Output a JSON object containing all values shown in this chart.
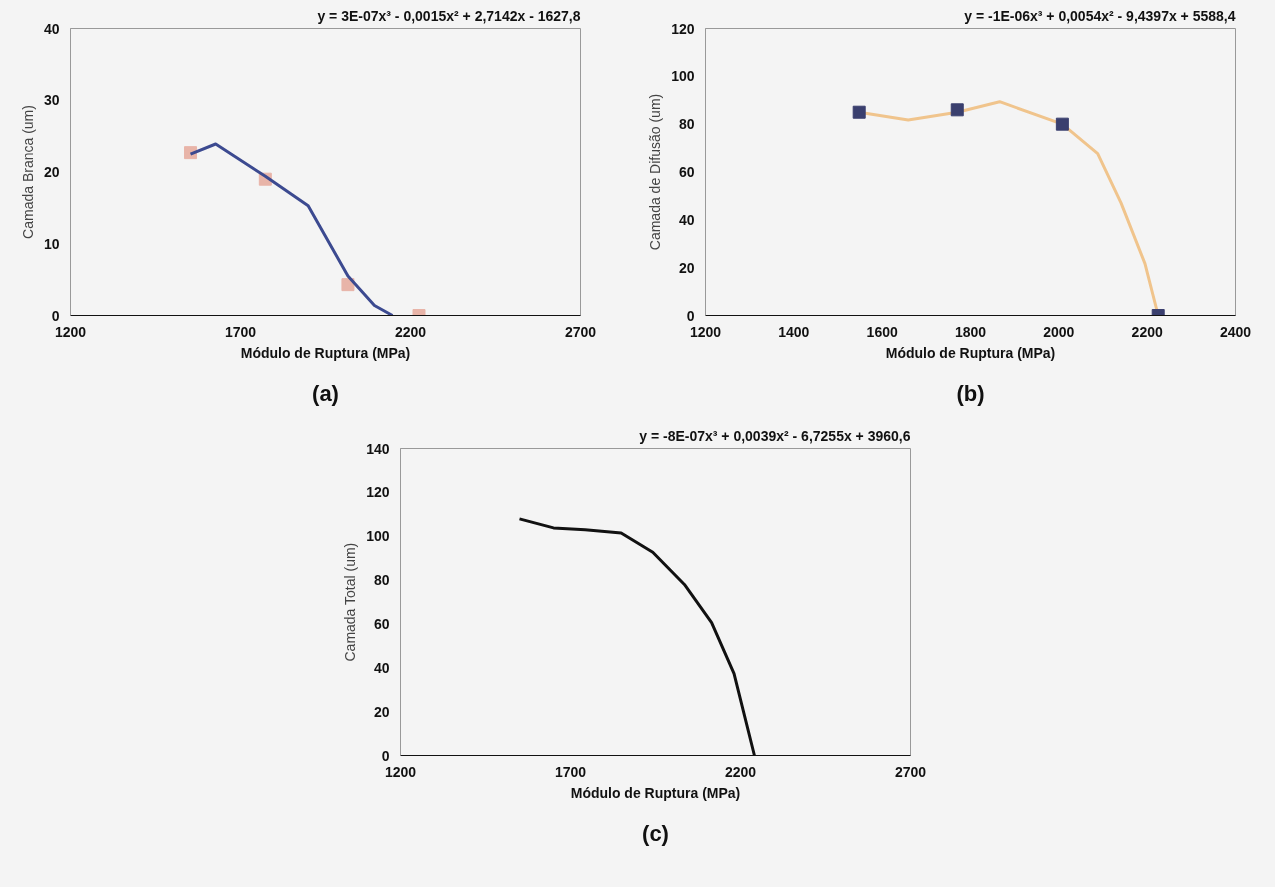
{
  "chart_data": [
    {
      "type": "scatter",
      "xlabel": "Módulo de Ruptura (MPa)",
      "ylabel": "Camada Branca (um)",
      "annotations": [
        "y = 3E-07x³ - 0,0015x² + 2,7142x - 1627,8",
        "(a)"
      ],
      "xlim": [
        1200,
        2700
      ],
      "xticks": [
        1200,
        1700,
        2200,
        2700
      ],
      "ylim": [
        0,
        40
      ],
      "yticks": [
        0,
        10,
        20,
        30,
        40
      ],
      "series": [
        {
          "marker": "square",
          "color": "#e8b4a8",
          "x": [
            1553,
            1773,
            2016,
            2225
          ],
          "values": [
            22.7,
            19,
            4.3,
            0
          ]
        },
        {
          "type": "line",
          "marker": "none",
          "color": "#3c4a90",
          "x": [
            1553,
            1627,
            1773,
            1899,
            2016,
            2094,
            2147
          ],
          "values": [
            22.5,
            23.9,
            19.4,
            15.3,
            5.5,
            1.4,
            0
          ]
        }
      ]
    },
    {
      "type": "scatter",
      "xlabel": "Módulo de Ruptura (MPa)",
      "ylabel": "Camada de Difusão (um)",
      "annotations": [
        "y = -1E-06x³ + 0,0054x² - 9,4397x + 5588,4",
        "(b)"
      ],
      "xlim": [
        1200,
        2400
      ],
      "xticks": [
        1200,
        1400,
        1600,
        1800,
        2000,
        2200,
        2400
      ],
      "ylim": [
        0,
        120
      ],
      "yticks": [
        0,
        20,
        40,
        60,
        80,
        100,
        120
      ],
      "series": [
        {
          "type": "line",
          "marker": "none",
          "color": "#f0c48c",
          "x": [
            1548,
            1659,
            1770,
            1866,
            2008,
            2088,
            2141,
            2195,
            2225
          ],
          "values": [
            85,
            81.7,
            85,
            89.4,
            80,
            67.7,
            47,
            21.7,
            0
          ]
        },
        {
          "marker": "square",
          "color": "#3a3f6e",
          "x": [
            1548,
            1770,
            2008,
            2225
          ],
          "values": [
            85,
            86,
            80,
            0
          ]
        }
      ]
    },
    {
      "type": "line",
      "xlabel": "Módulo de Ruptura (MPa)",
      "ylabel": "Camada Total (um)",
      "annotations": [
        "y = -8E-07x³ + 0,0039x² - 6,7255x + 3960,6",
        "(c)"
      ],
      "xlim": [
        1200,
        2700
      ],
      "xticks": [
        1200,
        1700,
        2200,
        2700
      ],
      "ylim": [
        0,
        140
      ],
      "yticks": [
        0,
        20,
        40,
        60,
        80,
        100,
        120,
        140
      ],
      "series": [
        {
          "marker": "none",
          "color": "#111111",
          "x": [
            1550,
            1650,
            1743,
            1849,
            1942,
            2035,
            2115,
            2181,
            2241
          ],
          "values": [
            107.9,
            103.8,
            102.9,
            101.5,
            92.7,
            78,
            60.6,
            37.3,
            0
          ]
        }
      ]
    }
  ]
}
